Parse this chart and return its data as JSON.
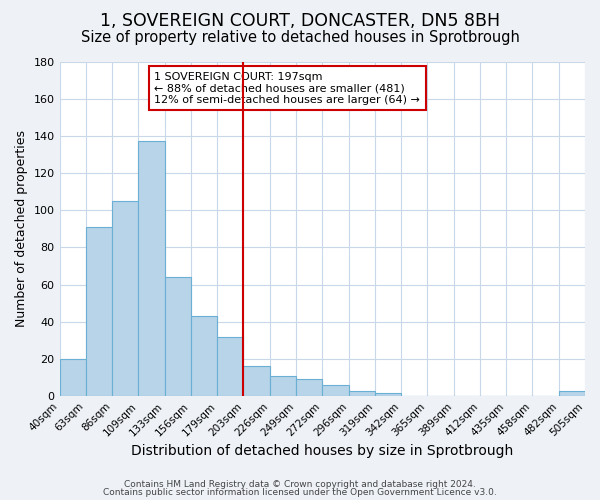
{
  "title": "1, SOVEREIGN COURT, DONCASTER, DN5 8BH",
  "subtitle": "Size of property relative to detached houses in Sprotbrough",
  "xlabel": "Distribution of detached houses by size in Sprotbrough",
  "ylabel": "Number of detached properties",
  "bin_edges": [
    "40sqm",
    "63sqm",
    "86sqm",
    "109sqm",
    "133sqm",
    "156sqm",
    "179sqm",
    "203sqm",
    "226sqm",
    "249sqm",
    "272sqm",
    "296sqm",
    "319sqm",
    "342sqm",
    "365sqm",
    "389sqm",
    "412sqm",
    "435sqm",
    "458sqm",
    "482sqm",
    "505sqm"
  ],
  "bar_values": [
    20,
    91,
    105,
    137,
    64,
    43,
    32,
    16,
    11,
    9,
    6,
    3,
    2,
    0,
    0,
    0,
    0,
    0,
    0,
    3
  ],
  "bar_color": "#b8d4e8",
  "bar_edge_color": "#6aafd4",
  "vline_index": 7,
  "vline_color": "#cc0000",
  "ylim": [
    0,
    180
  ],
  "yticks": [
    0,
    20,
    40,
    60,
    80,
    100,
    120,
    140,
    160,
    180
  ],
  "annotation_title": "1 SOVEREIGN COURT: 197sqm",
  "annotation_line1": "← 88% of detached houses are smaller (481)",
  "annotation_line2": "12% of semi-detached houses are larger (64) →",
  "footer_line1": "Contains HM Land Registry data © Crown copyright and database right 2024.",
  "footer_line2": "Contains public sector information licensed under the Open Government Licence v3.0.",
  "background_color": "#eef2f7",
  "plot_bg_color": "#ffffff",
  "grid_color": "#c8d8e8",
  "title_fontsize": 12.5,
  "subtitle_fontsize": 10.5,
  "xlabel_fontsize": 10,
  "ylabel_fontsize": 9,
  "annotation_box_edge": "#cc0000"
}
